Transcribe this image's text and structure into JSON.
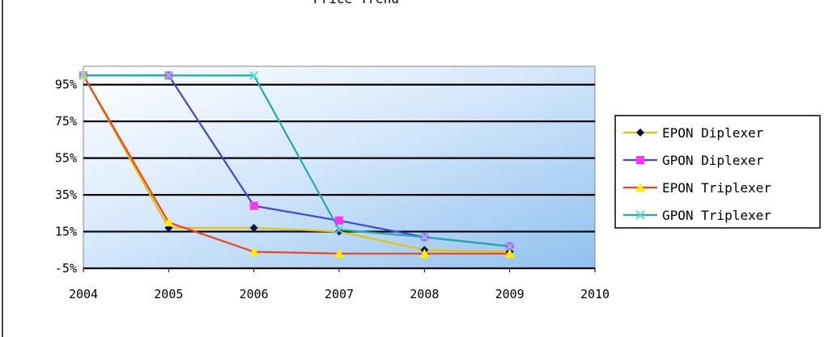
{
  "chart_data": {
    "type": "line",
    "title": "Price Trend",
    "xlabel": "",
    "ylabel": "",
    "x": [
      2004,
      2005,
      2006,
      2007,
      2008,
      2009
    ],
    "x_ticks": [
      "2004",
      "2005",
      "2006",
      "2007",
      "2008",
      "2009",
      "2010"
    ],
    "xlim": [
      2004,
      2010
    ],
    "y_ticks": [
      "95%",
      "75%",
      "55%",
      "35%",
      "15%",
      "-5%"
    ],
    "ylim": [
      -5,
      105
    ],
    "grid": true,
    "legend_position": "right",
    "series": [
      {
        "name": "EPON Diplexer",
        "values": [
          100,
          17,
          17,
          15,
          5,
          4
        ],
        "color": "#e8c400",
        "marker_color": "#10104a",
        "marker": "diamond"
      },
      {
        "name": "GPON Diplexer",
        "values": [
          100,
          100,
          29,
          21,
          12,
          7
        ],
        "color": "#4444dd",
        "marker_color": "#ff33ff",
        "marker": "square"
      },
      {
        "name": "EPON Triplexer",
        "values": [
          100,
          20,
          4,
          3,
          3,
          3
        ],
        "color": "#ee4422",
        "marker_color": "#ffee00",
        "marker": "triangle"
      },
      {
        "name": "GPON Triplexer",
        "values": [
          100,
          100,
          100,
          16,
          12,
          7
        ],
        "color": "#22aaaa",
        "marker_color": "#55dddd",
        "marker": "x"
      }
    ]
  }
}
